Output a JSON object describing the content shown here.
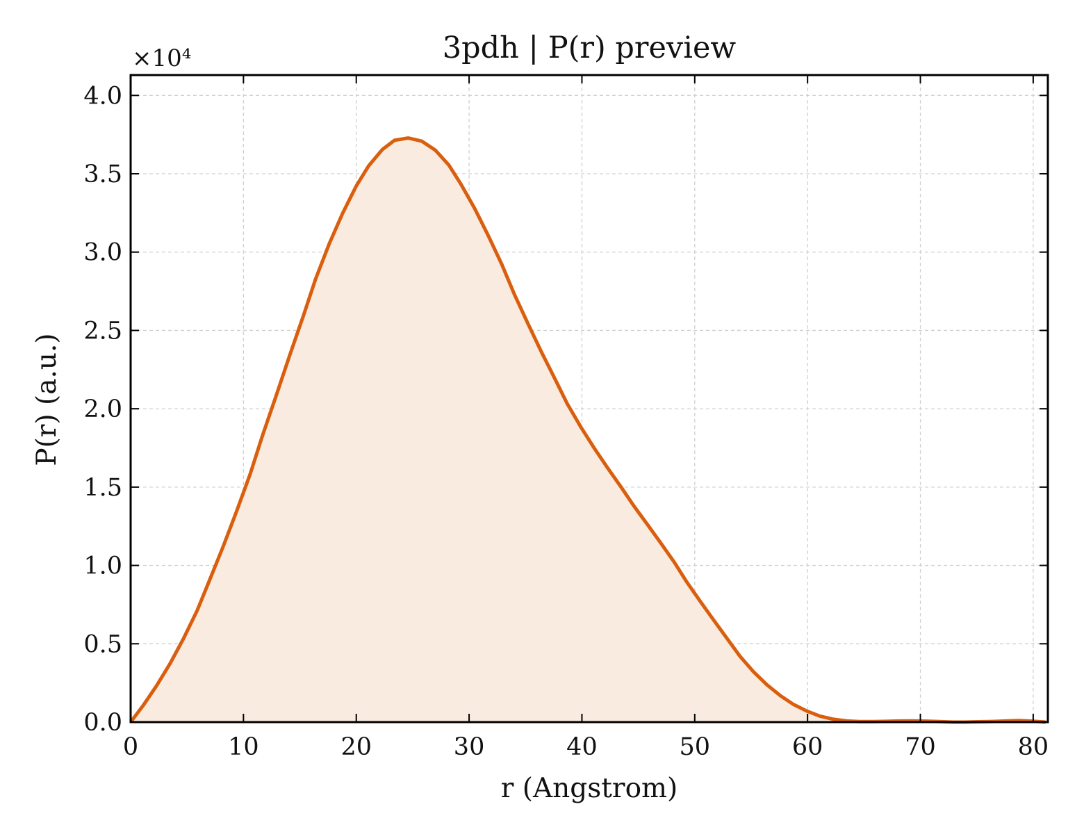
{
  "chart_data": {
    "type": "area",
    "title": "3pdh | P(r) preview",
    "xlabel": "r (Angstrom)",
    "ylabel": "P(r) (a.u.)",
    "y_multiplier": "×10⁴",
    "xlim": [
      0,
      81.3
    ],
    "ylim": [
      0,
      4.13
    ],
    "x_ticks": [
      0,
      10,
      20,
      30,
      40,
      50,
      60,
      70,
      80
    ],
    "x_tick_labels": [
      "0",
      "10",
      "20",
      "30",
      "40",
      "50",
      "60",
      "70",
      "80"
    ],
    "y_ticks": [
      0,
      0.5,
      1.0,
      1.5,
      2.0,
      2.5,
      3.0,
      3.5,
      4.0
    ],
    "y_tick_labels": [
      "0.0",
      "0.5",
      "1.0",
      "1.5",
      "2.0",
      "2.5",
      "3.0",
      "3.5",
      "4.0"
    ],
    "grid": true,
    "line_color": "#d95f0e",
    "fill_color": "#f9ebe0",
    "series": [
      {
        "x": [
          0,
          1.1,
          2.3,
          3.5,
          4.7,
          5.9,
          7.0,
          8.2,
          9.4,
          10.6,
          11.7,
          12.9,
          14.1,
          15.3,
          16.4,
          17.6,
          18.8,
          20.0,
          21.1,
          22.3,
          23.4,
          24.6,
          25.8,
          27.0,
          28.2,
          29.3,
          30.5,
          31.7,
          32.9,
          34.0,
          35.2,
          36.4,
          37.6,
          38.7,
          39.9,
          41.1,
          42.3,
          43.5,
          44.6,
          45.8,
          47.0,
          48.2,
          49.3,
          50.5,
          51.7,
          52.9,
          54.0,
          55.2,
          56.4,
          57.6,
          58.7,
          59.9,
          61.1,
          62.3,
          63.5,
          64.6,
          65.8,
          67.0,
          68.2,
          69.3,
          70.5,
          71.7,
          72.9,
          74.0,
          75.2,
          76.4,
          77.6,
          78.7,
          79.9,
          81.1
        ],
        "y": [
          0,
          0.105,
          0.232,
          0.374,
          0.535,
          0.713,
          0.907,
          1.12,
          1.347,
          1.584,
          1.832,
          2.083,
          2.341,
          2.591,
          2.83,
          3.053,
          3.249,
          3.422,
          3.551,
          3.654,
          3.714,
          3.728,
          3.708,
          3.651,
          3.556,
          3.431,
          3.278,
          3.105,
          2.921,
          2.733,
          2.546,
          2.364,
          2.192,
          2.032,
          1.884,
          1.748,
          1.62,
          1.497,
          1.38,
          1.262,
          1.142,
          1.019,
          0.894,
          0.77,
          0.649,
          0.53,
          0.421,
          0.322,
          0.238,
          0.168,
          0.115,
          0.072,
          0.038,
          0.018,
          0.007,
          0.003,
          0.003,
          0.005,
          0.007,
          0.008,
          0.006,
          0.003,
          0.0,
          0.0,
          0.002,
          0.004,
          0.007,
          0.01,
          0.006,
          0.0
        ]
      }
    ]
  }
}
